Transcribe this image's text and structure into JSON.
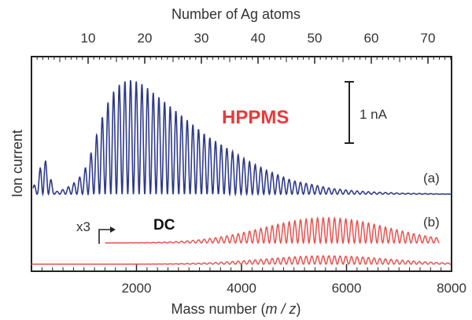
{
  "chart_data": {
    "type": "line",
    "title": "",
    "xlabel": "Mass number (",
    "xlabel_italic": "m / z",
    "xlabel_close": ")",
    "ylabel": "Ion current",
    "x2label": "Number of Ag atoms",
    "xlim": [
      0,
      8000
    ],
    "xticks": [
      2000,
      4000,
      6000,
      8000
    ],
    "xtick_labels": [
      "2000",
      "4000",
      "6000",
      "8000"
    ],
    "x2lim": [
      0,
      74.2
    ],
    "x2ticks": [
      10,
      20,
      30,
      40,
      50,
      60,
      70
    ],
    "x2tick_labels": [
      "10",
      "20",
      "30",
      "40",
      "50",
      "60",
      "70"
    ],
    "ag_mass": 107.87,
    "grid": false,
    "scale_bar": {
      "label": "1 nA"
    },
    "annotations": {
      "hppms": "HPPMS",
      "dc": "DC",
      "a": "(a)",
      "b": "(b)",
      "x3": "x3"
    },
    "series": [
      {
        "name": "HPPMS",
        "label": "(a)",
        "color": "#2e3a8c",
        "peak_n": [
          1,
          2,
          3,
          4,
          5,
          6,
          7,
          8,
          9,
          10,
          11,
          12,
          13,
          14,
          15,
          16,
          17,
          18,
          19,
          20,
          21,
          22,
          23,
          24,
          25,
          26,
          27,
          28,
          29,
          30,
          31,
          32,
          33,
          34,
          35,
          36,
          37,
          38,
          39,
          40,
          41,
          42,
          43,
          44,
          45,
          46,
          47,
          48,
          49,
          50,
          51,
          52,
          53,
          54,
          55,
          56,
          57,
          58,
          59,
          60,
          61,
          62,
          63,
          64,
          65,
          66,
          67,
          68,
          69,
          70,
          71,
          72,
          73
        ],
        "peak_height": [
          0.08,
          0.36,
          0.22,
          0.02,
          0.03,
          0.05,
          0.08,
          0.12,
          0.18,
          0.28,
          0.44,
          0.6,
          0.75,
          0.86,
          0.94,
          0.98,
          1.0,
          1.0,
          0.98,
          0.95,
          0.91,
          0.87,
          0.83,
          0.79,
          0.75,
          0.71,
          0.67,
          0.63,
          0.59,
          0.55,
          0.51,
          0.48,
          0.45,
          0.42,
          0.39,
          0.36,
          0.33,
          0.3,
          0.27,
          0.25,
          0.22,
          0.2,
          0.18,
          0.16,
          0.14,
          0.12,
          0.11,
          0.1,
          0.09,
          0.08,
          0.07,
          0.06,
          0.05,
          0.045,
          0.04,
          0.035,
          0.03,
          0.027,
          0.024,
          0.02,
          0.018,
          0.016,
          0.014,
          0.012,
          0.01,
          0.009,
          0.008,
          0.007,
          0.006,
          0.005,
          0.004,
          0.003,
          0.002
        ]
      },
      {
        "name": "DC",
        "label": "(b)",
        "color": "#e8524f",
        "magnified": 3,
        "n_start": 13,
        "n_end": 72,
        "center_n": 52,
        "width_n": 11,
        "peak_height": 0.27
      },
      {
        "name": "DC",
        "label": "(b)",
        "color": "#e8524f",
        "magnified": 1,
        "n_start": 13,
        "n_end": 74,
        "center_n": 52,
        "width_n": 11,
        "peak_height": 0.09
      }
    ]
  }
}
